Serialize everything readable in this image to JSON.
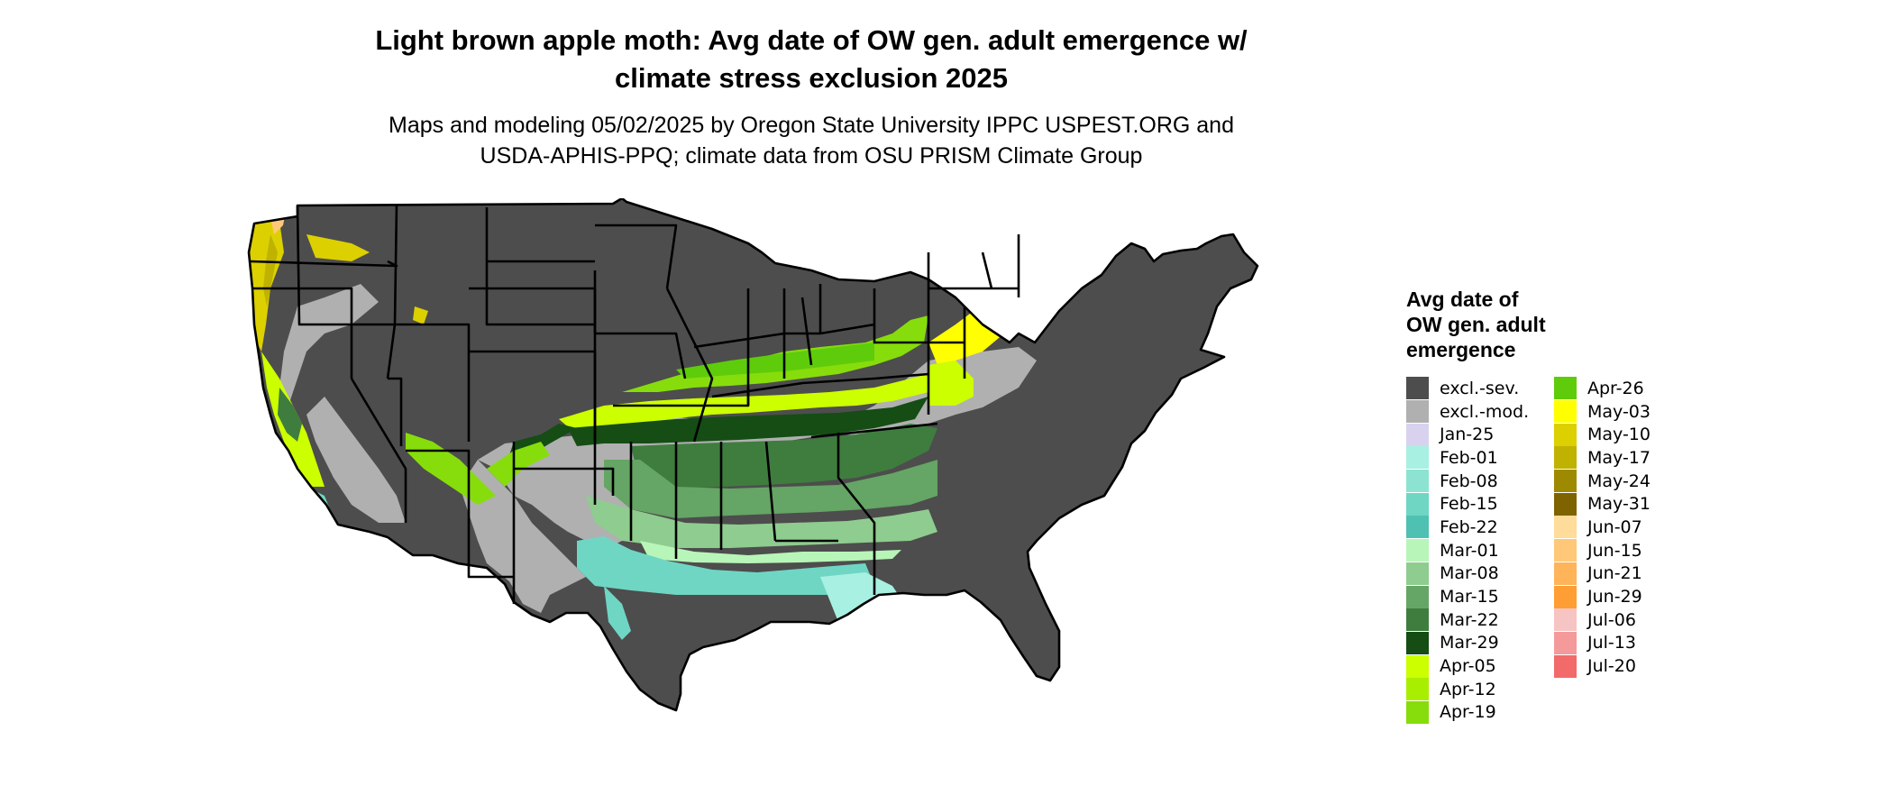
{
  "title_line1": "Light brown apple moth: Avg date of OW gen. adult emergence w/",
  "title_line2": "climate stress exclusion 2025",
  "subtitle_line1": "Maps and modeling 05/02/2025 by Oregon State University IPPC USPEST.ORG and",
  "subtitle_line2": "USDA-APHIS-PPQ; climate data from OSU PRISM Climate Group",
  "legend": {
    "title_line1": "Avg date of",
    "title_line2": "OW gen. adult",
    "title_line3": "emergence",
    "col1": [
      {
        "label": "excl.-sev.",
        "color": "#4d4d4d"
      },
      {
        "label": "excl.-mod.",
        "color": "#b0b0b0"
      },
      {
        "label": "Jan-25",
        "color": "#d9d2ef"
      },
      {
        "label": "Feb-01",
        "color": "#a8f0e2"
      },
      {
        "label": "Feb-08",
        "color": "#8de3d1"
      },
      {
        "label": "Feb-15",
        "color": "#6fd6c4"
      },
      {
        "label": "Feb-22",
        "color": "#4fc1b3"
      },
      {
        "label": "Mar-01",
        "color": "#b8f5b8"
      },
      {
        "label": "Mar-08",
        "color": "#8fcc8f"
      },
      {
        "label": "Mar-15",
        "color": "#65a565"
      },
      {
        "label": "Mar-22",
        "color": "#3f7d3f"
      },
      {
        "label": "Mar-29",
        "color": "#154d15"
      },
      {
        "label": "Apr-05",
        "color": "#ccff00"
      },
      {
        "label": "Apr-12",
        "color": "#a9ee00"
      },
      {
        "label": "Apr-19",
        "color": "#87dd0b"
      }
    ],
    "col2": [
      {
        "label": "Apr-26",
        "color": "#5ecc0b"
      },
      {
        "label": "May-03",
        "color": "#ffff00"
      },
      {
        "label": "May-10",
        "color": "#dcd000"
      },
      {
        "label": "May-17",
        "color": "#bfb200"
      },
      {
        "label": "May-24",
        "color": "#9e8a00"
      },
      {
        "label": "May-31",
        "color": "#7e6300"
      },
      {
        "label": "Jun-07",
        "color": "#ffdc9a"
      },
      {
        "label": "Jun-15",
        "color": "#ffc878"
      },
      {
        "label": "Jun-21",
        "color": "#ffb45a"
      },
      {
        "label": "Jun-29",
        "color": "#ff9e34"
      },
      {
        "label": "Jul-06",
        "color": "#f7c4c4"
      },
      {
        "label": "Jul-13",
        "color": "#f59a9a"
      },
      {
        "label": "Jul-20",
        "color": "#f26a6a"
      }
    ]
  },
  "colors": {
    "excl_sev": "#4d4d4d",
    "excl_mod": "#b0b0b0",
    "border": "#000000"
  }
}
